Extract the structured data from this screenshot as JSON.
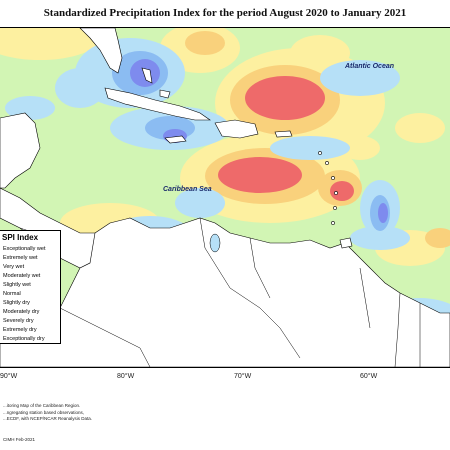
{
  "header": {
    "title": "Standardized Precipitation Index for the period August 2020 to January 2021"
  },
  "map": {
    "labels": {
      "atlantic": "Atlantic Ocean",
      "caribbean": "Caribbean Sea"
    },
    "colors": {
      "ocean_base": "#d2f5b4",
      "land": "#ffffff",
      "coastline": "#000000",
      "exceptionally_dry": "#ee6a6a",
      "extremely_dry": "#f7a0a0",
      "severely_dry": "#f9d17c",
      "moderately_dry": "#fdf0a0",
      "moderately_wet": "#b6e0f7",
      "very_wet": "#8bbcf2",
      "extremely_wet": "#7e8bee",
      "exceptionally_wet": "#5a5ad0"
    },
    "longitude_labels": [
      "90°W",
      "80°W",
      "70°W",
      "60°W"
    ]
  },
  "legend": {
    "title": "SPI Index",
    "items": [
      "Exceptionally wet",
      "Extremely wet",
      "Very wet",
      "Moderately wet",
      "Slightly wet",
      "Normal",
      "Slightly dry",
      "Moderately dry",
      "Severely dry",
      "Extremely dry",
      "Exceptionally dry"
    ]
  },
  "credits": {
    "line1": "...itoring Map of the Caribbean Region.",
    "line2": "...ngregating station based observations,",
    "line3": "...ECDF, with NCEP/NCAR Reanalysis Data.",
    "copyright": "CIMH Feb-2021"
  }
}
